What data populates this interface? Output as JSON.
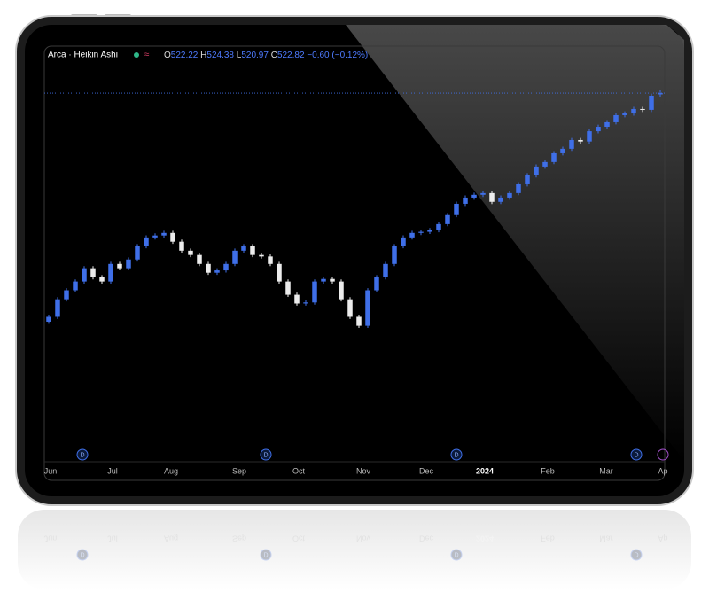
{
  "header": {
    "title": "Arca · Heikin Ashi",
    "flag": "≈",
    "labels": [
      "O",
      "H",
      "L",
      "C"
    ],
    "change": "−0.60 (−0.12%)"
  },
  "chart_data": {
    "type": "candlestick",
    "open": [
      416.0,
      418.3,
      426.5,
      430.7,
      434.8,
      441.0,
      436.8,
      434.8,
      443.0,
      441.0,
      445.1,
      451.3,
      455.4,
      456.3,
      457.5,
      453.4,
      449.2,
      447.2,
      443.0,
      438.9,
      440.0,
      443.0,
      449.2,
      451.3,
      447.2,
      446.5,
      443.0,
      434.8,
      428.6,
      424.5,
      425.0,
      434.8,
      436.0,
      434.8,
      426.5,
      418.3,
      414.1,
      430.7,
      436.8,
      443.0,
      451.3,
      455.4,
      457.5,
      458.0,
      458.8,
      461.6,
      465.8,
      471.1,
      474.0,
      475.3,
      476.1,
      472.0,
      474.0,
      476.1,
      480.2,
      484.4,
      488.5,
      490.6,
      494.7,
      496.8,
      500.9,
      500.2,
      505.0,
      507.1,
      509.2,
      512.5,
      513.3,
      515.4,
      515.0,
      522.22
    ],
    "high": [
      419.3,
      427.5,
      431.7,
      435.8,
      442.0,
      442.0,
      437.8,
      444.0,
      444.0,
      446.1,
      452.3,
      456.4,
      457.3,
      458.5,
      458.5,
      454.4,
      450.2,
      448.2,
      444.0,
      441.0,
      444.0,
      450.2,
      452.3,
      452.3,
      448.2,
      447.5,
      444.0,
      435.8,
      429.6,
      426.0,
      435.8,
      437.0,
      437.0,
      435.8,
      427.5,
      419.3,
      431.7,
      437.8,
      444.0,
      452.3,
      456.4,
      458.5,
      459.0,
      459.8,
      462.6,
      466.8,
      472.1,
      475.0,
      476.3,
      477.1,
      477.1,
      475.0,
      477.1,
      481.2,
      485.4,
      489.5,
      491.6,
      495.7,
      497.8,
      501.9,
      501.9,
      506.0,
      508.1,
      510.2,
      513.5,
      514.3,
      516.4,
      516.4,
      522.6,
      524.38
    ],
    "low": [
      415.0,
      417.3,
      425.5,
      429.7,
      433.8,
      435.8,
      433.8,
      433.8,
      440.0,
      440.0,
      444.1,
      450.3,
      454.4,
      455.3,
      452.4,
      448.2,
      446.2,
      442.0,
      437.9,
      437.9,
      439.0,
      442.0,
      448.2,
      446.2,
      445.5,
      442.0,
      433.8,
      427.6,
      423.5,
      423.5,
      424.0,
      433.8,
      433.8,
      425.5,
      417.3,
      413.1,
      413.1,
      429.7,
      435.8,
      442.0,
      450.3,
      454.4,
      456.5,
      457.0,
      457.8,
      460.6,
      464.8,
      470.1,
      473.0,
      474.3,
      471.0,
      471.0,
      473.0,
      475.1,
      479.2,
      483.4,
      487.5,
      489.6,
      493.7,
      495.8,
      499.2,
      499.2,
      504.0,
      506.1,
      508.2,
      511.5,
      512.3,
      514.0,
      514.0,
      520.97
    ],
    "close": [
      418.3,
      426.5,
      430.7,
      434.8,
      441.0,
      436.8,
      434.8,
      443.0,
      441.0,
      445.1,
      451.3,
      455.4,
      456.3,
      457.5,
      453.4,
      449.2,
      447.2,
      443.0,
      438.9,
      440.0,
      443.0,
      449.2,
      451.3,
      447.2,
      446.5,
      443.0,
      434.8,
      428.6,
      424.5,
      425.0,
      434.8,
      436.0,
      434.8,
      426.5,
      418.3,
      414.1,
      430.7,
      436.8,
      443.0,
      451.3,
      455.4,
      457.5,
      458.0,
      458.8,
      461.6,
      465.8,
      471.1,
      474.0,
      475.3,
      476.1,
      472.0,
      474.0,
      476.1,
      480.2,
      484.4,
      488.5,
      490.6,
      494.7,
      496.8,
      500.9,
      500.2,
      505.0,
      507.1,
      509.2,
      512.5,
      513.3,
      515.4,
      515.0,
      521.6,
      522.82
    ],
    "xlim": [
      -0.5,
      69.5
    ],
    "ylim": [
      351,
      539.4
    ],
    "xticks": [
      {
        "value": 0.2,
        "label": "Jun"
      },
      {
        "value": 7.2,
        "label": "Jul"
      },
      {
        "value": 13.8,
        "label": "Aug"
      },
      {
        "value": 21.5,
        "label": "Sep"
      },
      {
        "value": 28.2,
        "label": "Oct"
      },
      {
        "value": 35.5,
        "label": "Nov"
      },
      {
        "value": 42.6,
        "label": "Dec"
      },
      {
        "value": 49.2,
        "label": "2024",
        "bold": true
      },
      {
        "value": 56.3,
        "label": "Feb"
      },
      {
        "value": 62.9,
        "label": "Mar"
      },
      {
        "value": 69.3,
        "label": "Ap"
      }
    ],
    "events": [
      {
        "x": 3.8,
        "label": "D"
      },
      {
        "x": 24.5,
        "label": "D"
      },
      {
        "x": 46,
        "label": "D"
      },
      {
        "x": 66.3,
        "label": "D"
      }
    ],
    "up_color": "#3f6fe8",
    "down_color": "#ececec",
    "last_price_line": true
  }
}
